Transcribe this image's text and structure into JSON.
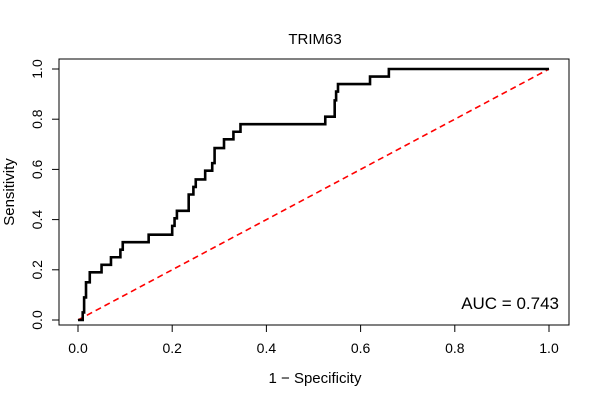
{
  "chart_data": {
    "type": "line",
    "title": "TRIM63",
    "xlabel": "1 − Specificity",
    "ylabel": "Sensitivity",
    "xlim": [
      0,
      1
    ],
    "ylim": [
      0,
      1
    ],
    "x_ticks": [
      "0.0",
      "0.2",
      "0.4",
      "0.6",
      "0.8",
      "1.0"
    ],
    "y_ticks": [
      "0.0",
      "0.2",
      "0.4",
      "0.6",
      "0.8",
      "1.0"
    ],
    "annotation": "AUC = 0.743",
    "grid": false,
    "series": [
      {
        "color": "#000000",
        "style": "solid",
        "points": [
          [
            0.0,
            0.0
          ],
          [
            0.01,
            0.0
          ],
          [
            0.01,
            0.03
          ],
          [
            0.013,
            0.03
          ],
          [
            0.013,
            0.09
          ],
          [
            0.017,
            0.09
          ],
          [
            0.017,
            0.15
          ],
          [
            0.025,
            0.15
          ],
          [
            0.025,
            0.19
          ],
          [
            0.05,
            0.19
          ],
          [
            0.05,
            0.22
          ],
          [
            0.07,
            0.22
          ],
          [
            0.07,
            0.25
          ],
          [
            0.09,
            0.25
          ],
          [
            0.09,
            0.28
          ],
          [
            0.095,
            0.28
          ],
          [
            0.095,
            0.31
          ],
          [
            0.15,
            0.31
          ],
          [
            0.15,
            0.34
          ],
          [
            0.2,
            0.34
          ],
          [
            0.2,
            0.375
          ],
          [
            0.205,
            0.375
          ],
          [
            0.205,
            0.405
          ],
          [
            0.21,
            0.405
          ],
          [
            0.21,
            0.435
          ],
          [
            0.235,
            0.435
          ],
          [
            0.235,
            0.5
          ],
          [
            0.245,
            0.5
          ],
          [
            0.245,
            0.53
          ],
          [
            0.25,
            0.53
          ],
          [
            0.25,
            0.56
          ],
          [
            0.27,
            0.56
          ],
          [
            0.27,
            0.595
          ],
          [
            0.285,
            0.595
          ],
          [
            0.285,
            0.625
          ],
          [
            0.29,
            0.625
          ],
          [
            0.29,
            0.685
          ],
          [
            0.31,
            0.685
          ],
          [
            0.31,
            0.72
          ],
          [
            0.33,
            0.72
          ],
          [
            0.33,
            0.75
          ],
          [
            0.345,
            0.75
          ],
          [
            0.345,
            0.78
          ],
          [
            0.525,
            0.78
          ],
          [
            0.525,
            0.81
          ],
          [
            0.545,
            0.81
          ],
          [
            0.545,
            0.875
          ],
          [
            0.548,
            0.875
          ],
          [
            0.548,
            0.91
          ],
          [
            0.552,
            0.91
          ],
          [
            0.552,
            0.94
          ],
          [
            0.62,
            0.94
          ],
          [
            0.62,
            0.97
          ],
          [
            0.66,
            0.97
          ],
          [
            0.66,
            1.0
          ],
          [
            1.0,
            1.0
          ]
        ]
      },
      {
        "color": "#ff0000",
        "style": "dashed",
        "points": [
          [
            0,
            0
          ],
          [
            1,
            1
          ]
        ]
      }
    ]
  }
}
